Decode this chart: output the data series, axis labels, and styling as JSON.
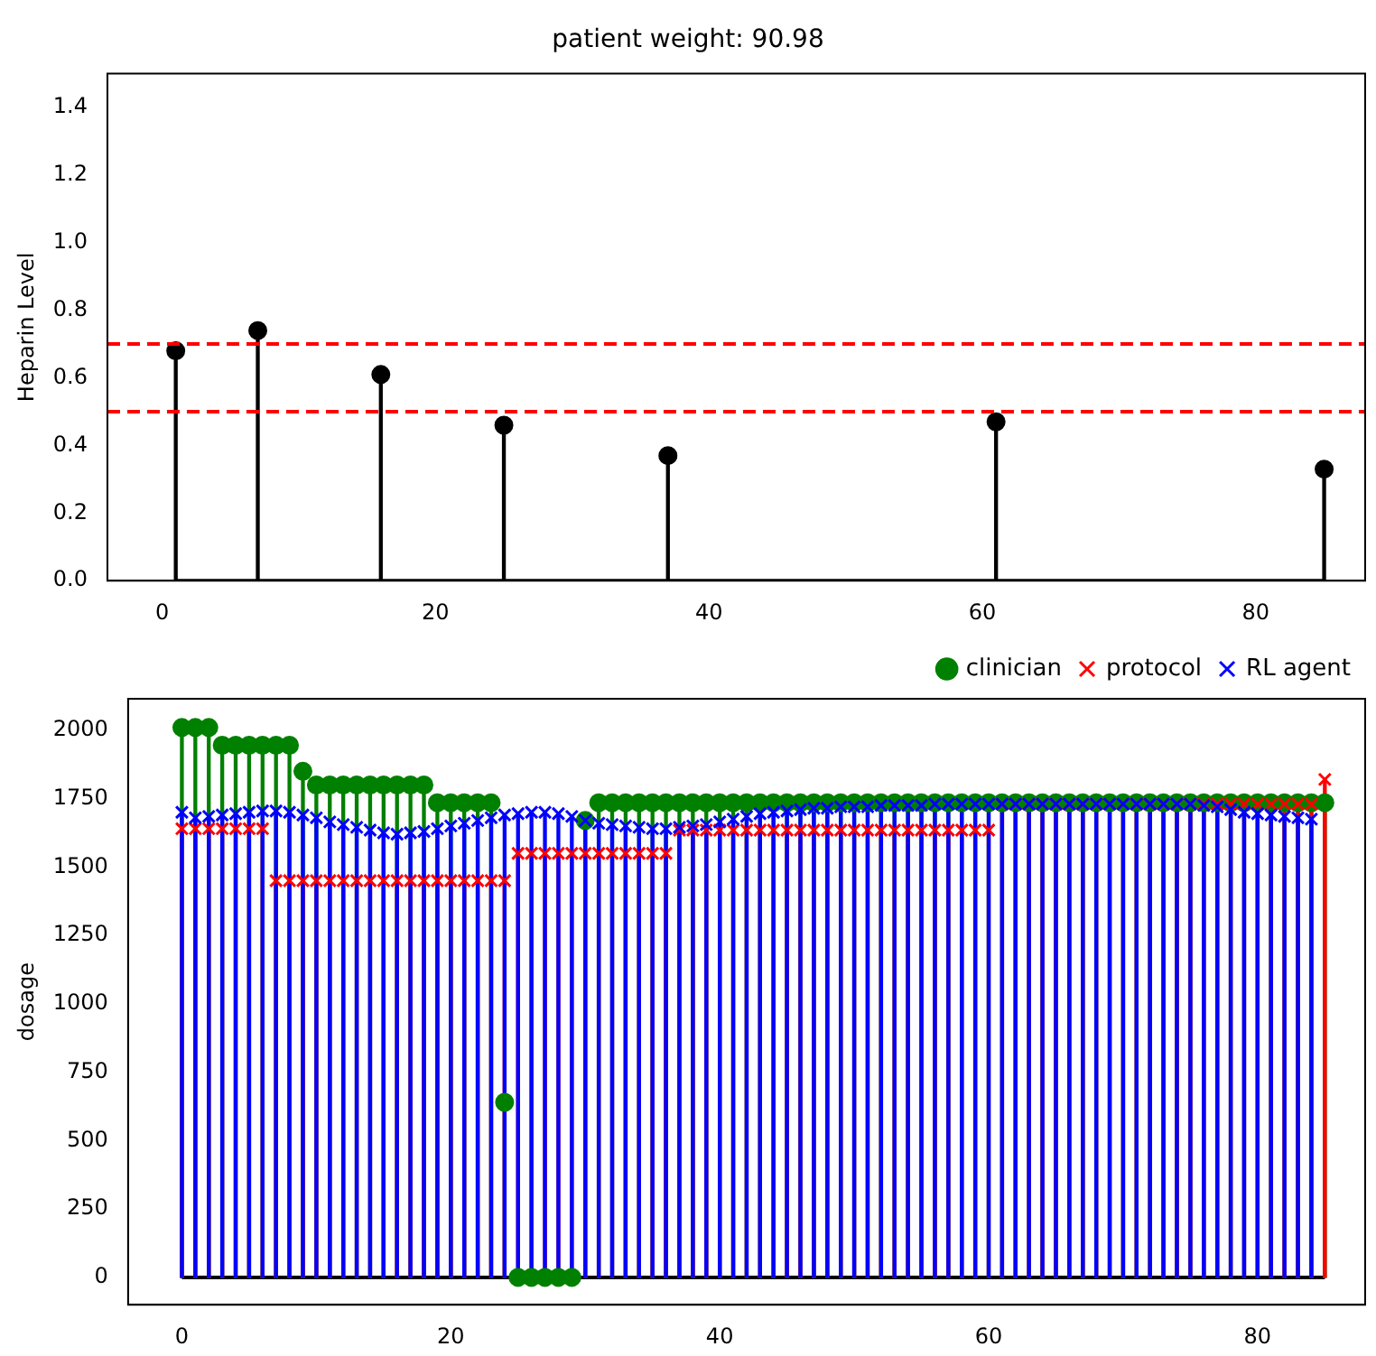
{
  "chart_data": [
    {
      "type": "lollipop",
      "title": "patient weight: 90.98",
      "ylabel": "Heparin Level",
      "x": [
        1,
        7,
        16,
        25,
        37,
        61,
        85
      ],
      "series": [
        {
          "color": "#000000",
          "marker": "circle",
          "values": [
            0.68,
            0.74,
            0.61,
            0.46,
            0.37,
            0.47,
            0.33
          ]
        }
      ],
      "xlim": [
        -4,
        88
      ],
      "xticks": [
        0,
        20,
        40,
        60,
        80
      ],
      "ylim": [
        0,
        1.5
      ],
      "yticks": [
        {
          "value": 0,
          "label": "0.0"
        },
        0.2,
        0.4,
        0.6,
        0.8,
        {
          "value": 1,
          "label": "1.0"
        },
        1.2,
        1.4
      ],
      "ref_lines": [
        {
          "axis": "y",
          "value": 0.5,
          "color": "#ff0000",
          "line_style": "dashed"
        },
        {
          "axis": "y",
          "value": 0.7,
          "color": "#ff0000",
          "line_style": "dashed"
        }
      ]
    },
    {
      "type": "lollipop",
      "ylabel": "dosage",
      "legend": "top right",
      "x": [
        0,
        1,
        2,
        3,
        4,
        5,
        6,
        7,
        8,
        9,
        10,
        11,
        12,
        13,
        14,
        15,
        16,
        17,
        18,
        19,
        20,
        21,
        22,
        23,
        24,
        25,
        26,
        27,
        28,
        29,
        30,
        31,
        32,
        33,
        34,
        35,
        36,
        37,
        38,
        39,
        40,
        41,
        42,
        43,
        44,
        45,
        46,
        47,
        48,
        49,
        50,
        51,
        52,
        53,
        54,
        55,
        56,
        57,
        58,
        59,
        60,
        61,
        62,
        63,
        64,
        65,
        66,
        67,
        68,
        69,
        70,
        71,
        72,
        73,
        74,
        75,
        76,
        77,
        78,
        79,
        80,
        81,
        82,
        83,
        84,
        85
      ],
      "series": [
        {
          "name": "clinician",
          "color": "#008000",
          "marker": "circle",
          "values": [
            2010,
            2010,
            2010,
            1945,
            1945,
            1945,
            1945,
            1945,
            1945,
            1850,
            1800,
            1800,
            1800,
            1800,
            1800,
            1800,
            1800,
            1800,
            1800,
            1735,
            1735,
            1735,
            1735,
            1735,
            640,
            0,
            0,
            0,
            0,
            0,
            1670,
            1735,
            1735,
            1735,
            1735,
            1735,
            1735,
            1735,
            1735,
            1735,
            1735,
            1735,
            1735,
            1735,
            1735,
            1735,
            1735,
            1735,
            1735,
            1735,
            1735,
            1735,
            1735,
            1735,
            1735,
            1735,
            1735,
            1735,
            1735,
            1735,
            1735,
            1735,
            1735,
            1735,
            1735,
            1735,
            1735,
            1735,
            1735,
            1735,
            1735,
            1735,
            1735,
            1735,
            1735,
            1735,
            1735,
            1735,
            1735,
            1735,
            1735,
            1735,
            1735,
            1735,
            1735,
            1735
          ]
        },
        {
          "name": "protocol",
          "color": "#ff0000",
          "marker": "cross",
          "values": [
            1640,
            1640,
            1640,
            1640,
            1640,
            1640,
            1640,
            1450,
            1450,
            1450,
            1450,
            1450,
            1450,
            1450,
            1450,
            1450,
            1450,
            1450,
            1450,
            1450,
            1450,
            1450,
            1450,
            1450,
            1450,
            1550,
            1550,
            1550,
            1550,
            1550,
            1550,
            1550,
            1550,
            1550,
            1550,
            1550,
            1550,
            1635,
            1635,
            1635,
            1635,
            1635,
            1635,
            1635,
            1635,
            1635,
            1635,
            1635,
            1635,
            1635,
            1635,
            1635,
            1635,
            1635,
            1635,
            1635,
            1635,
            1635,
            1635,
            1635,
            1635,
            1730,
            1730,
            1730,
            1730,
            1730,
            1730,
            1730,
            1730,
            1730,
            1730,
            1730,
            1730,
            1730,
            1730,
            1730,
            1730,
            1730,
            1730,
            1730,
            1730,
            1730,
            1730,
            1730,
            1730,
            1820
          ]
        },
        {
          "name": "RL agent",
          "color": "#0000ff",
          "marker": "cross",
          "values": [
            1700,
            1680,
            1685,
            1690,
            1695,
            1700,
            1705,
            1705,
            1700,
            1690,
            1680,
            1665,
            1655,
            1645,
            1635,
            1625,
            1620,
            1625,
            1630,
            1640,
            1650,
            1660,
            1670,
            1680,
            1690,
            1695,
            1700,
            1700,
            1695,
            1685,
            1670,
            1660,
            1655,
            1650,
            1645,
            1640,
            1640,
            1645,
            1650,
            1655,
            1665,
            1675,
            1685,
            1695,
            1700,
            1705,
            1710,
            1715,
            1715,
            1720,
            1720,
            1720,
            1725,
            1725,
            1725,
            1725,
            1730,
            1730,
            1730,
            1730,
            1730,
            1730,
            1730,
            1730,
            1730,
            1730,
            1730,
            1730,
            1730,
            1730,
            1730,
            1730,
            1730,
            1730,
            1730,
            1730,
            1725,
            1720,
            1710,
            1700,
            1695,
            1690,
            1685,
            1680,
            1675,
            null
          ]
        }
      ],
      "xlim": [
        -4,
        88
      ],
      "xticks": [
        0,
        20,
        40,
        60,
        80
      ],
      "ylim": [
        -100,
        2115
      ],
      "yticks": [
        0,
        250,
        500,
        750,
        1000,
        1250,
        1500,
        1750,
        2000
      ]
    }
  ]
}
